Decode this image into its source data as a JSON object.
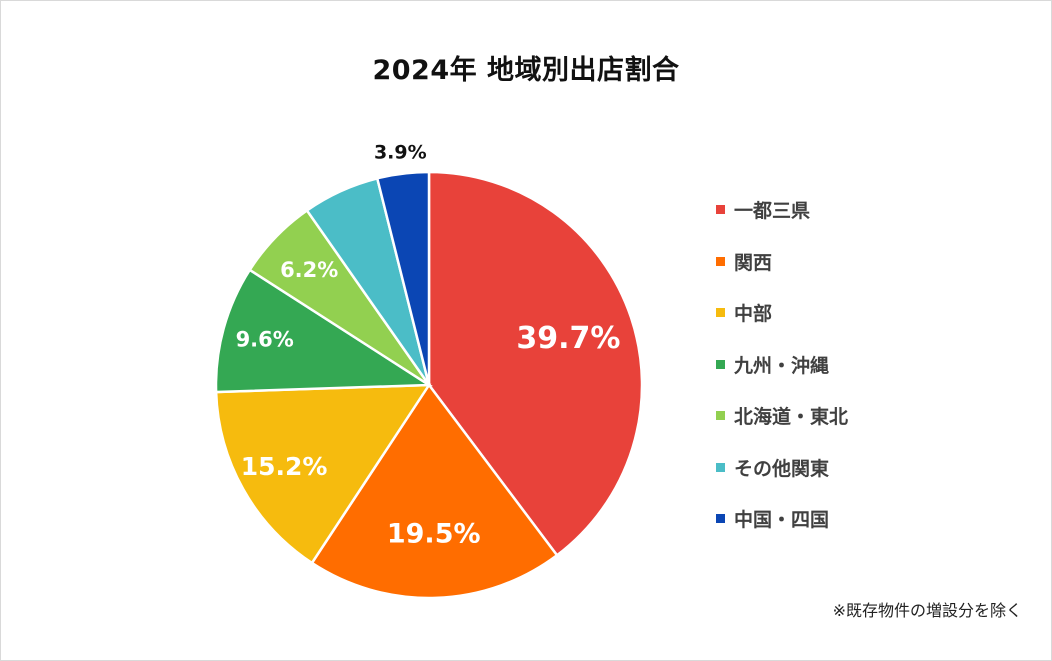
{
  "chart_data": {
    "type": "pie",
    "title": "2024年 地域別出店割合",
    "categories": [
      "一都三県",
      "関西",
      "中部",
      "九州・沖縄",
      "北海道・東北",
      "その他関東",
      "中国・四国"
    ],
    "values": [
      39.7,
      19.5,
      15.2,
      9.6,
      6.2,
      5.8,
      3.9
    ],
    "data_labels": [
      "39.7%",
      "19.5%",
      "15.2%",
      "9.6%",
      "6.2%",
      "",
      "3.9%"
    ],
    "colors": [
      "#e8423a",
      "#ff6d00",
      "#f6bb0e",
      "#34a853",
      "#92d050",
      "#4bbdc7",
      "#0b46b4"
    ],
    "legend_position": "right"
  },
  "footnote": "※既存物件の増設分を除く"
}
